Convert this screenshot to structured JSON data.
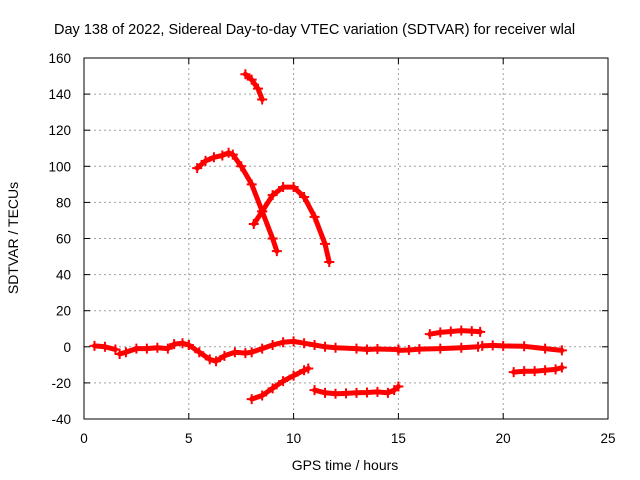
{
  "chart_data": {
    "type": "scatter",
    "title": "Day 138 of 2022, Sidereal Day-to-day VTEC variation (SDTVAR) for receiver wlal",
    "xlabel": "GPS time / hours",
    "ylabel": "SDTVAR / TECUs",
    "xlim": [
      0,
      25
    ],
    "ylim": [
      -40,
      160
    ],
    "xticks": [
      "0",
      "5",
      "10",
      "15",
      "20",
      "25"
    ],
    "yticks": [
      "-40",
      "-20",
      "0",
      "20",
      "40",
      "60",
      "80",
      "100",
      "120",
      "140",
      "160"
    ],
    "grid": true,
    "legend": "none",
    "marker": "plus",
    "color": "#ff0000",
    "series": [
      {
        "points": [
          [
            0.5,
            0.5
          ],
          [
            1.0,
            0.0
          ],
          [
            1.5,
            -1.5
          ]
        ]
      },
      {
        "points": [
          [
            1.7,
            -4
          ],
          [
            2.0,
            -3
          ],
          [
            2.5,
            -1
          ],
          [
            3.0,
            -1
          ],
          [
            3.5,
            -0.5
          ],
          [
            4.0,
            -1
          ],
          [
            4.3,
            1.5
          ],
          [
            4.7,
            2
          ],
          [
            5.0,
            1
          ]
        ]
      },
      {
        "points": [
          [
            5.0,
            1
          ],
          [
            5.5,
            -3
          ],
          [
            6.0,
            -7
          ],
          [
            6.3,
            -8
          ],
          [
            6.7,
            -5
          ],
          [
            7.2,
            -3
          ],
          [
            7.7,
            -3.5
          ],
          [
            8.0,
            -3
          ],
          [
            8.5,
            -1
          ],
          [
            9.0,
            1
          ],
          [
            9.5,
            2.5
          ],
          [
            10.0,
            3
          ],
          [
            10.5,
            2
          ],
          [
            11.0,
            1
          ],
          [
            11.5,
            0
          ],
          [
            12.0,
            -0.5
          ],
          [
            13.0,
            -1
          ],
          [
            13.5,
            -1.5
          ],
          [
            14.0,
            -1.2
          ],
          [
            15.0,
            -1.5
          ]
        ]
      },
      {
        "points": [
          [
            15.0,
            -2
          ],
          [
            15.5,
            -1.8
          ],
          [
            16.0,
            -1.3
          ],
          [
            17.0,
            -1
          ],
          [
            18.0,
            -0.5
          ],
          [
            18.8,
            0
          ]
        ]
      },
      {
        "points": [
          [
            19.0,
            0.5
          ],
          [
            19.5,
            0.8
          ],
          [
            20.0,
            0.5
          ],
          [
            21.0,
            0.3
          ],
          [
            22.0,
            -1
          ],
          [
            22.8,
            -2
          ]
        ]
      },
      {
        "points": [
          [
            16.5,
            7
          ],
          [
            17.0,
            8
          ],
          [
            17.5,
            8.5
          ],
          [
            18.0,
            9
          ],
          [
            18.5,
            8.7
          ],
          [
            18.9,
            8.3
          ]
        ]
      },
      {
        "points": [
          [
            20.5,
            -14
          ],
          [
            21.0,
            -13.5
          ],
          [
            21.5,
            -13.5
          ],
          [
            22.0,
            -13
          ],
          [
            22.5,
            -12.5
          ],
          [
            22.8,
            -11.5
          ]
        ]
      },
      {
        "points": [
          [
            8.0,
            -29
          ],
          [
            8.5,
            -27
          ],
          [
            9.0,
            -23
          ],
          [
            9.5,
            -19
          ],
          [
            10.0,
            -16
          ],
          [
            10.5,
            -13
          ],
          [
            10.7,
            -12
          ]
        ]
      },
      {
        "points": [
          [
            11.0,
            -24
          ],
          [
            11.5,
            -25.5
          ],
          [
            12.0,
            -26
          ],
          [
            12.5,
            -25.8
          ],
          [
            13.0,
            -25.5
          ],
          [
            13.5,
            -25.3
          ],
          [
            14.0,
            -25
          ],
          [
            14.5,
            -25.5
          ],
          [
            14.8,
            -24
          ],
          [
            15.0,
            -22
          ]
        ]
      },
      {
        "points": [
          [
            5.4,
            99
          ],
          [
            5.8,
            103
          ],
          [
            6.2,
            105
          ],
          [
            6.6,
            106
          ],
          [
            6.9,
            107.5
          ],
          [
            7.1,
            106.5
          ],
          [
            7.5,
            100
          ],
          [
            8.0,
            90
          ],
          [
            8.5,
            75
          ],
          [
            9.0,
            60
          ],
          [
            9.2,
            53
          ]
        ]
      },
      {
        "points": [
          [
            8.1,
            68
          ],
          [
            8.5,
            75
          ],
          [
            9.0,
            84
          ],
          [
            9.5,
            88.5
          ],
          [
            10.0,
            88.5
          ],
          [
            10.5,
            83
          ],
          [
            11.0,
            72
          ],
          [
            11.5,
            57
          ],
          [
            11.7,
            47
          ]
        ]
      },
      {
        "points": [
          [
            7.7,
            151
          ],
          [
            8.0,
            148
          ],
          [
            8.3,
            143
          ],
          [
            8.5,
            137
          ]
        ]
      }
    ]
  }
}
